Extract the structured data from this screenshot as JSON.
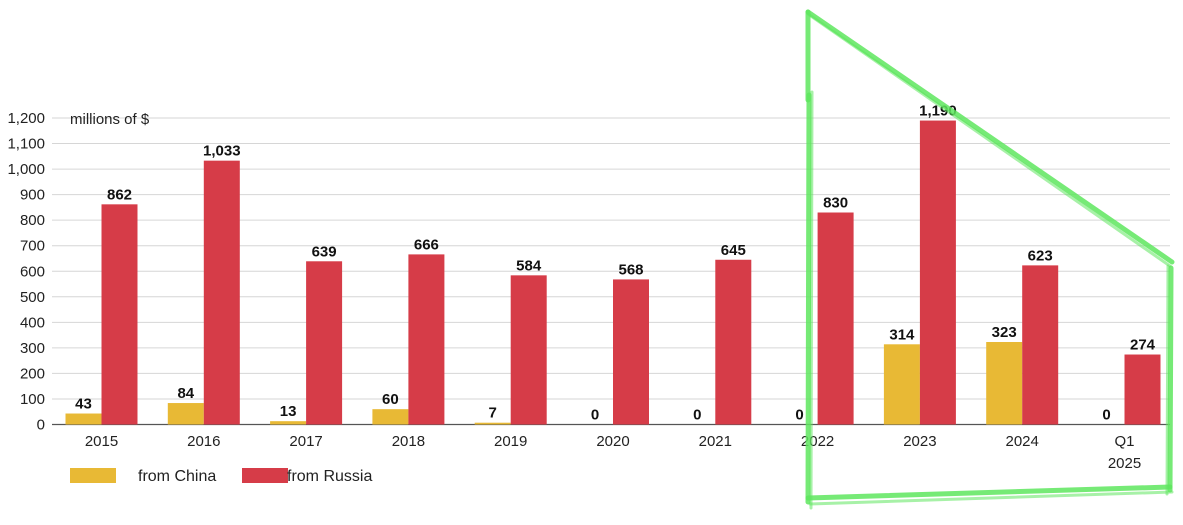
{
  "chart_data": {
    "type": "bar",
    "ylabel": "millions of $",
    "ylim": [
      0,
      1200
    ],
    "yticks": [
      0,
      100,
      200,
      300,
      400,
      500,
      600,
      700,
      800,
      900,
      1000,
      1100,
      1200
    ],
    "ytick_labels": [
      "0",
      "100",
      "200",
      "300",
      "400",
      "500",
      "600",
      "700",
      "800",
      "900",
      "1,000",
      "1,100",
      "1,200"
    ],
    "grid": true,
    "legend_position": "bottom-left",
    "categories": [
      "2015",
      "2016",
      "2017",
      "2018",
      "2019",
      "2020",
      "2021",
      "2022",
      "2023",
      "2024",
      "Q1 2025"
    ],
    "series": [
      {
        "name": "from China",
        "color": "#e8b935",
        "values": [
          43,
          84,
          13,
          60,
          7,
          0,
          0,
          0,
          314,
          323,
          0
        ],
        "labels": [
          "43",
          "84",
          "13",
          "60",
          "7",
          "0",
          "0",
          "0",
          "314",
          "323",
          "0"
        ]
      },
      {
        "name": "from Russia",
        "color": "#d63c48",
        "values": [
          862,
          1033,
          639,
          666,
          584,
          568,
          645,
          830,
          1190,
          623,
          274
        ],
        "labels": [
          "862",
          "1,033",
          "639",
          "666",
          "584",
          "568",
          "645",
          "830",
          "1,190",
          "623",
          "274"
        ]
      }
    ],
    "annotation": {
      "shape": "trapezoid-outline",
      "color": "#5ee65e",
      "highlights": [
        "2022",
        "2023",
        "2024",
        "Q1 2025"
      ]
    }
  }
}
